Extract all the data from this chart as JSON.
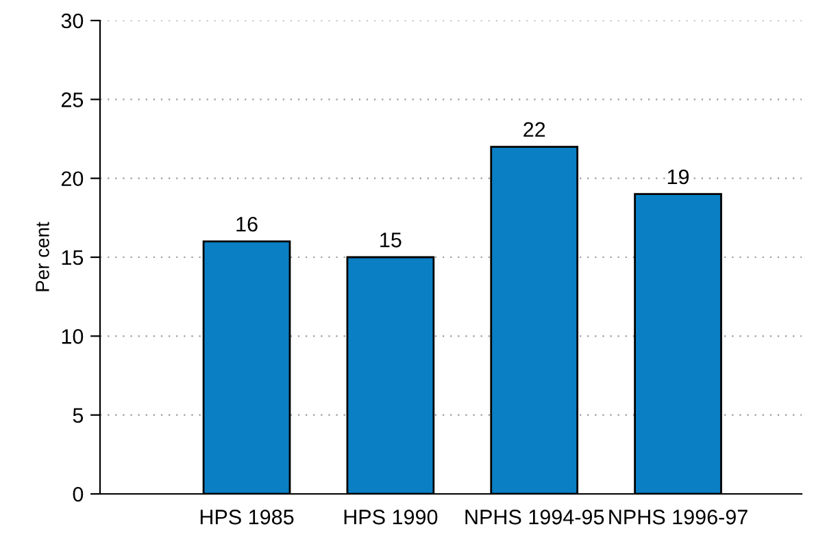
{
  "chart_data": {
    "type": "bar",
    "ylabel": "Per cent",
    "categories": [
      "HPS 1985",
      "HPS 1990",
      "NPHS 1994-95",
      "NPHS 1996-97"
    ],
    "values": [
      16,
      15,
      22,
      19
    ],
    "color": "#0a7fc4",
    "ylim": [
      0,
      30
    ],
    "yticks": [
      0,
      5,
      10,
      15,
      20,
      25,
      30
    ],
    "grid": "y",
    "data_labels": true
  }
}
